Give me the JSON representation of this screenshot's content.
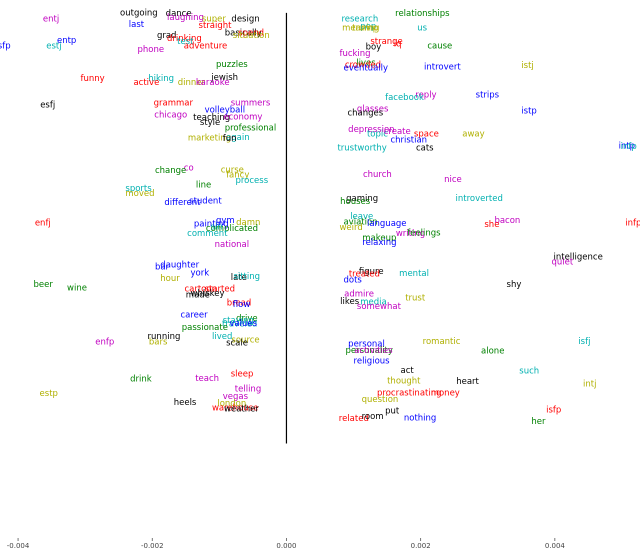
{
  "chart_data": {
    "type": "scatter",
    "title": "",
    "xlabel": "",
    "ylabel": "",
    "xlim": [
      -0.00415,
      0.00515
    ],
    "ylim": [
      -1.0,
      1.0
    ],
    "x_ticks": [
      -0.004,
      -0.002,
      0.0,
      0.002,
      0.004
    ],
    "x_tick_labels": [
      "-0.004",
      "-0.002",
      "0.000",
      "0.002",
      "0.004"
    ],
    "divider_x": 0.0,
    "divider_y_range": [
      -0.785,
      0.98
    ],
    "colors": {
      "black": "#000000",
      "blue": "#0000ff",
      "red": "#ff0000",
      "green": "#008000",
      "magenta": "#c000c0",
      "cyan": "#00b0b0",
      "olive": "#b0b000",
      "axis": "#000000"
    },
    "points": [
      {
        "label": "outgoing",
        "x": -0.00248,
        "y": 0.98,
        "color": "black"
      },
      {
        "label": "dance",
        "x": -0.0018,
        "y": 0.978,
        "color": "black"
      },
      {
        "label": "laughing",
        "x": -0.00178,
        "y": 0.962,
        "color": "magenta"
      },
      {
        "label": "super",
        "x": -0.00126,
        "y": 0.955,
        "color": "olive"
      },
      {
        "label": "design",
        "x": -0.00082,
        "y": 0.955,
        "color": "black"
      },
      {
        "label": "entj",
        "x": -0.00363,
        "y": 0.955,
        "color": "magenta"
      },
      {
        "label": "last",
        "x": -0.00235,
        "y": 0.933,
        "color": "blue"
      },
      {
        "label": "straight",
        "x": -0.00131,
        "y": 0.929,
        "color": "red"
      },
      {
        "label": "basically",
        "x": -0.00092,
        "y": 0.898,
        "color": "black"
      },
      {
        "label": "spend",
        "x": -0.00072,
        "y": 0.897,
        "color": "red"
      },
      {
        "label": "grad",
        "x": -0.00193,
        "y": 0.887,
        "color": "black"
      },
      {
        "label": "situation",
        "x": -0.0008,
        "y": 0.887,
        "color": "olive"
      },
      {
        "label": "drinking",
        "x": -0.00178,
        "y": 0.876,
        "color": "red"
      },
      {
        "label": "entp",
        "x": -0.00342,
        "y": 0.866,
        "color": "blue"
      },
      {
        "label": "test",
        "x": -0.00163,
        "y": 0.863,
        "color": "cyan"
      },
      {
        "label": "esfp",
        "x": -0.00438,
        "y": 0.845,
        "color": "blue"
      },
      {
        "label": "estj",
        "x": -0.00358,
        "y": 0.845,
        "color": "cyan"
      },
      {
        "label": "adventure",
        "x": -0.00153,
        "y": 0.845,
        "color": "red"
      },
      {
        "label": "phone",
        "x": -0.00222,
        "y": 0.83,
        "color": "magenta"
      },
      {
        "label": "puzzles",
        "x": -0.00105,
        "y": 0.768,
        "color": "green"
      },
      {
        "label": "jewish",
        "x": -0.00112,
        "y": 0.716,
        "color": "black"
      },
      {
        "label": "funny",
        "x": -0.00307,
        "y": 0.711,
        "color": "red"
      },
      {
        "label": "hiking",
        "x": -0.00206,
        "y": 0.711,
        "color": "cyan"
      },
      {
        "label": "active",
        "x": -0.00228,
        "y": 0.694,
        "color": "red"
      },
      {
        "label": "dinner",
        "x": -0.00162,
        "y": 0.694,
        "color": "olive"
      },
      {
        "label": "karaoke",
        "x": -0.00135,
        "y": 0.694,
        "color": "magenta"
      },
      {
        "label": "summers",
        "x": -0.00083,
        "y": 0.61,
        "color": "magenta"
      },
      {
        "label": "grammar",
        "x": -0.00198,
        "y": 0.61,
        "color": "red"
      },
      {
        "label": "esfj",
        "x": -0.00367,
        "y": 0.602,
        "color": "black"
      },
      {
        "label": "volleyball",
        "x": -0.00122,
        "y": 0.581,
        "color": "blue"
      },
      {
        "label": "chicago",
        "x": -0.00197,
        "y": 0.561,
        "color": "magenta"
      },
      {
        "label": "teaching",
        "x": -0.00139,
        "y": 0.551,
        "color": "black"
      },
      {
        "label": "economy",
        "x": -0.00094,
        "y": 0.553,
        "color": "magenta"
      },
      {
        "label": "style",
        "x": -0.00129,
        "y": 0.531,
        "color": "black"
      },
      {
        "label": "professional",
        "x": -0.00092,
        "y": 0.509,
        "color": "green"
      },
      {
        "label": "marketing",
        "x": -0.00147,
        "y": 0.467,
        "color": "olive"
      },
      {
        "label": "again",
        "x": -0.0009,
        "y": 0.469,
        "color": "cyan"
      },
      {
        "label": "fun",
        "x": -0.00095,
        "y": 0.465,
        "color": "black"
      },
      {
        "label": "co",
        "x": -0.00153,
        "y": 0.345,
        "color": "magenta"
      },
      {
        "label": "change",
        "x": -0.00196,
        "y": 0.333,
        "color": "green"
      },
      {
        "label": "curse",
        "x": -0.00098,
        "y": 0.337,
        "color": "olive"
      },
      {
        "label": "fancy",
        "x": -0.0009,
        "y": 0.316,
        "color": "olive"
      },
      {
        "label": "process",
        "x": -0.00076,
        "y": 0.294,
        "color": "cyan"
      },
      {
        "label": "line",
        "x": -0.00135,
        "y": 0.275,
        "color": "green"
      },
      {
        "label": "sports",
        "x": -0.0024,
        "y": 0.26,
        "color": "cyan"
      },
      {
        "label": "moved",
        "x": -0.0024,
        "y": 0.24,
        "color": "olive"
      },
      {
        "label": "different",
        "x": -0.00182,
        "y": 0.203,
        "color": "blue"
      },
      {
        "label": "student",
        "x": -0.00145,
        "y": 0.208,
        "color": "blue"
      },
      {
        "label": "gym",
        "x": -0.00105,
        "y": 0.129,
        "color": "blue"
      },
      {
        "label": "enfj",
        "x": -0.00375,
        "y": 0.118,
        "color": "red"
      },
      {
        "label": "painting",
        "x": -0.00138,
        "y": 0.114,
        "color": "blue"
      },
      {
        "label": "damn",
        "x": -0.00075,
        "y": 0.12,
        "color": "olive"
      },
      {
        "label": "complicated",
        "x": -0.0012,
        "y": 0.096,
        "color": "green"
      },
      {
        "label": "sin",
        "x": -0.00113,
        "y": 0.103,
        "color": "cyan"
      },
      {
        "label": "comment",
        "x": -0.00148,
        "y": 0.075,
        "color": "cyan"
      },
      {
        "label": "national",
        "x": -0.00107,
        "y": 0.03,
        "color": "magenta"
      },
      {
        "label": "daughter",
        "x": -0.00188,
        "y": -0.054,
        "color": "blue"
      },
      {
        "label": "bar",
        "x": -0.00196,
        "y": -0.061,
        "color": "blue"
      },
      {
        "label": "york",
        "x": -0.00143,
        "y": -0.087,
        "color": "blue"
      },
      {
        "label": "hour",
        "x": -0.00188,
        "y": -0.109,
        "color": "olive"
      },
      {
        "label": "late",
        "x": -0.00083,
        "y": -0.105,
        "color": "black"
      },
      {
        "label": "sitting",
        "x": -0.00079,
        "y": -0.101,
        "color": "cyan"
      },
      {
        "label": "beer",
        "x": -0.00377,
        "y": -0.134,
        "color": "green"
      },
      {
        "label": "wine",
        "x": -0.00327,
        "y": -0.148,
        "color": "green"
      },
      {
        "label": "cartoon",
        "x": -0.00152,
        "y": -0.151,
        "color": "red"
      },
      {
        "label": "started",
        "x": -0.00122,
        "y": -0.151,
        "color": "red"
      },
      {
        "label": "whiskey",
        "x": -0.00143,
        "y": -0.171,
        "color": "black"
      },
      {
        "label": "made",
        "x": -0.0015,
        "y": -0.177,
        "color": "black"
      },
      {
        "label": "bread",
        "x": -0.00089,
        "y": -0.208,
        "color": "red"
      },
      {
        "label": "flow",
        "x": -0.0008,
        "y": -0.216,
        "color": "blue"
      },
      {
        "label": "career",
        "x": -0.00158,
        "y": -0.258,
        "color": "blue"
      },
      {
        "label": "drive",
        "x": -0.00075,
        "y": -0.273,
        "color": "green"
      },
      {
        "label": "staying",
        "x": -0.00095,
        "y": -0.281,
        "color": "cyan"
      },
      {
        "label": "traveled",
        "x": -0.00096,
        "y": -0.296,
        "color": "cyan"
      },
      {
        "label": "values",
        "x": -0.00085,
        "y": -0.293,
        "color": "blue"
      },
      {
        "label": "passionate",
        "x": -0.00156,
        "y": -0.309,
        "color": "green"
      },
      {
        "label": "lived",
        "x": -0.00111,
        "y": -0.347,
        "color": "cyan"
      },
      {
        "label": "running",
        "x": -0.00207,
        "y": -0.347,
        "color": "black"
      },
      {
        "label": "source",
        "x": -0.00082,
        "y": -0.361,
        "color": "olive"
      },
      {
        "label": "enfp",
        "x": -0.00285,
        "y": -0.369,
        "color": "magenta"
      },
      {
        "label": "bars",
        "x": -0.00205,
        "y": -0.369,
        "color": "olive"
      },
      {
        "label": "scale",
        "x": -0.0009,
        "y": -0.372,
        "color": "black"
      },
      {
        "label": "sleep",
        "x": -0.00083,
        "y": -0.5,
        "color": "red"
      },
      {
        "label": "drink",
        "x": -0.00233,
        "y": -0.521,
        "color": "green"
      },
      {
        "label": "teach",
        "x": -0.00136,
        "y": -0.519,
        "color": "magenta"
      },
      {
        "label": "telling",
        "x": -0.00077,
        "y": -0.562,
        "color": "magenta"
      },
      {
        "label": "estp",
        "x": -0.00368,
        "y": -0.58,
        "color": "olive"
      },
      {
        "label": "vegas",
        "x": -0.00095,
        "y": -0.593,
        "color": "magenta"
      },
      {
        "label": "heels",
        "x": -0.00168,
        "y": -0.617,
        "color": "black"
      },
      {
        "label": "london",
        "x": -0.00103,
        "y": -0.621,
        "color": "olive"
      },
      {
        "label": "warehouse",
        "x": -0.00111,
        "y": -0.64,
        "color": "red"
      },
      {
        "label": "weather",
        "x": -0.00093,
        "y": -0.643,
        "color": "black"
      },
      {
        "label": "research",
        "x": 0.00082,
        "y": 0.955,
        "color": "cyan"
      },
      {
        "label": "relationships",
        "x": 0.00162,
        "y": 0.978,
        "color": "green"
      },
      {
        "label": "pop",
        "x": 0.0011,
        "y": 0.925,
        "color": "cyan"
      },
      {
        "label": "us",
        "x": 0.00195,
        "y": 0.918,
        "color": "cyan"
      },
      {
        "label": "meaning",
        "x": 0.00083,
        "y": 0.918,
        "color": "olive"
      },
      {
        "label": "trump",
        "x": 0.00098,
        "y": 0.918,
        "color": "olive"
      },
      {
        "label": "strange",
        "x": 0.00125,
        "y": 0.863,
        "color": "red"
      },
      {
        "label": "iq",
        "x": 0.0016,
        "y": 0.852,
        "color": "red"
      },
      {
        "label": "cause",
        "x": 0.0021,
        "y": 0.845,
        "color": "green"
      },
      {
        "label": "boy",
        "x": 0.00118,
        "y": 0.84,
        "color": "black"
      },
      {
        "label": "fucking",
        "x": 0.00079,
        "y": 0.814,
        "color": "magenta"
      },
      {
        "label": "lives",
        "x": 0.00104,
        "y": 0.775,
        "color": "green"
      },
      {
        "label": "crowded",
        "x": 0.00087,
        "y": 0.767,
        "color": "red"
      },
      {
        "label": "istj",
        "x": 0.0035,
        "y": 0.765,
        "color": "olive"
      },
      {
        "label": "eventually",
        "x": 0.00085,
        "y": 0.755,
        "color": "blue"
      },
      {
        "label": "introvert",
        "x": 0.00205,
        "y": 0.759,
        "color": "blue"
      },
      {
        "label": "reply",
        "x": 0.00192,
        "y": 0.644,
        "color": "magenta"
      },
      {
        "label": "strips",
        "x": 0.00282,
        "y": 0.644,
        "color": "blue"
      },
      {
        "label": "facebook",
        "x": 0.00147,
        "y": 0.633,
        "color": "cyan"
      },
      {
        "label": "glasses",
        "x": 0.00105,
        "y": 0.587,
        "color": "magenta"
      },
      {
        "label": "istp",
        "x": 0.0035,
        "y": 0.577,
        "color": "blue"
      },
      {
        "label": "changes",
        "x": 0.00091,
        "y": 0.57,
        "color": "black"
      },
      {
        "label": "depression",
        "x": 0.00092,
        "y": 0.503,
        "color": "magenta"
      },
      {
        "label": "topic",
        "x": 0.0012,
        "y": 0.483,
        "color": "cyan"
      },
      {
        "label": "create",
        "x": 0.00145,
        "y": 0.493,
        "color": "magenta"
      },
      {
        "label": "space",
        "x": 0.0019,
        "y": 0.483,
        "color": "red"
      },
      {
        "label": "away",
        "x": 0.00262,
        "y": 0.483,
        "color": "olive"
      },
      {
        "label": "christian",
        "x": 0.00155,
        "y": 0.46,
        "color": "blue"
      },
      {
        "label": "trustworthy",
        "x": 0.00076,
        "y": 0.427,
        "color": "cyan"
      },
      {
        "label": "cats",
        "x": 0.00193,
        "y": 0.426,
        "color": "black"
      },
      {
        "label": "intp",
        "x": 0.00495,
        "y": 0.434,
        "color": "blue"
      },
      {
        "label": "infp",
        "x": 0.00498,
        "y": 0.433,
        "color": "cyan"
      },
      {
        "label": "church",
        "x": 0.00114,
        "y": 0.318,
        "color": "magenta"
      },
      {
        "label": "nice",
        "x": 0.00235,
        "y": 0.297,
        "color": "magenta"
      },
      {
        "label": "gaming",
        "x": 0.00089,
        "y": 0.22,
        "color": "black"
      },
      {
        "label": "introverted",
        "x": 0.00252,
        "y": 0.22,
        "color": "cyan"
      },
      {
        "label": "houses",
        "x": 0.0008,
        "y": 0.206,
        "color": "green"
      },
      {
        "label": "leave",
        "x": 0.00095,
        "y": 0.145,
        "color": "cyan"
      },
      {
        "label": "bacon",
        "x": 0.0031,
        "y": 0.13,
        "color": "magenta"
      },
      {
        "label": "aviation",
        "x": 0.00085,
        "y": 0.123,
        "color": "green"
      },
      {
        "label": "language",
        "x": 0.0012,
        "y": 0.116,
        "color": "blue"
      },
      {
        "label": "she",
        "x": 0.00295,
        "y": 0.112,
        "color": "red"
      },
      {
        "label": "infp",
        "x": 0.00505,
        "y": 0.118,
        "color": "red"
      },
      {
        "label": "weird",
        "x": 0.00079,
        "y": 0.101,
        "color": "olive"
      },
      {
        "label": "writing",
        "x": 0.00163,
        "y": 0.076,
        "color": "magenta"
      },
      {
        "label": "feelings",
        "x": 0.0018,
        "y": 0.077,
        "color": "green"
      },
      {
        "label": "makeup",
        "x": 0.00113,
        "y": 0.058,
        "color": "green"
      },
      {
        "label": "relaxing",
        "x": 0.00113,
        "y": 0.038,
        "color": "blue"
      },
      {
        "label": "intelligence",
        "x": 0.00398,
        "y": -0.02,
        "color": "black"
      },
      {
        "label": "quiet",
        "x": 0.00395,
        "y": -0.04,
        "color": "magenta"
      },
      {
        "label": "figure",
        "x": 0.00108,
        "y": -0.08,
        "color": "black"
      },
      {
        "label": "mental",
        "x": 0.00168,
        "y": -0.089,
        "color": "cyan"
      },
      {
        "label": "treated",
        "x": 0.00093,
        "y": -0.09,
        "color": "red"
      },
      {
        "label": "dots",
        "x": 0.00085,
        "y": -0.114,
        "color": "blue"
      },
      {
        "label": "shy",
        "x": 0.00328,
        "y": -0.133,
        "color": "black"
      },
      {
        "label": "admire",
        "x": 0.00086,
        "y": -0.172,
        "color": "magenta"
      },
      {
        "label": "trust",
        "x": 0.00177,
        "y": -0.189,
        "color": "olive"
      },
      {
        "label": "likes",
        "x": 0.0008,
        "y": -0.202,
        "color": "black"
      },
      {
        "label": "media",
        "x": 0.0011,
        "y": -0.205,
        "color": "cyan"
      },
      {
        "label": "somewhat",
        "x": 0.00105,
        "y": -0.223,
        "color": "magenta"
      },
      {
        "label": "romantic",
        "x": 0.00203,
        "y": -0.367,
        "color": "olive"
      },
      {
        "label": "isfj",
        "x": 0.00435,
        "y": -0.367,
        "color": "cyan"
      },
      {
        "label": "personal",
        "x": 0.00092,
        "y": -0.378,
        "color": "blue"
      },
      {
        "label": "personality",
        "x": 0.00088,
        "y": -0.404,
        "color": "green"
      },
      {
        "label": "activities",
        "x": 0.00101,
        "y": -0.403,
        "color": "magenta"
      },
      {
        "label": "alone",
        "x": 0.0029,
        "y": -0.405,
        "color": "green"
      },
      {
        "label": "religious",
        "x": 0.001,
        "y": -0.446,
        "color": "blue"
      },
      {
        "label": "act",
        "x": 0.0017,
        "y": -0.485,
        "color": "black"
      },
      {
        "label": "such",
        "x": 0.00347,
        "y": -0.487,
        "color": "cyan"
      },
      {
        "label": "thought",
        "x": 0.0015,
        "y": -0.528,
        "color": "olive"
      },
      {
        "label": "heart",
        "x": 0.00253,
        "y": -0.53,
        "color": "black"
      },
      {
        "label": "intj",
        "x": 0.00442,
        "y": -0.541,
        "color": "olive"
      },
      {
        "label": "procrastinating",
        "x": 0.00135,
        "y": -0.578,
        "color": "red"
      },
      {
        "label": "money",
        "x": 0.00215,
        "y": -0.578,
        "color": "red"
      },
      {
        "label": "question",
        "x": 0.00112,
        "y": -0.605,
        "color": "olive"
      },
      {
        "label": "put",
        "x": 0.00147,
        "y": -0.652,
        "color": "black"
      },
      {
        "label": "isfp",
        "x": 0.00387,
        "y": -0.648,
        "color": "red"
      },
      {
        "label": "related",
        "x": 0.00078,
        "y": -0.683,
        "color": "red"
      },
      {
        "label": "room",
        "x": 0.00112,
        "y": -0.675,
        "color": "black"
      },
      {
        "label": "nothing",
        "x": 0.00175,
        "y": -0.68,
        "color": "blue"
      },
      {
        "label": "her",
        "x": 0.00365,
        "y": -0.695,
        "color": "green"
      }
    ]
  }
}
